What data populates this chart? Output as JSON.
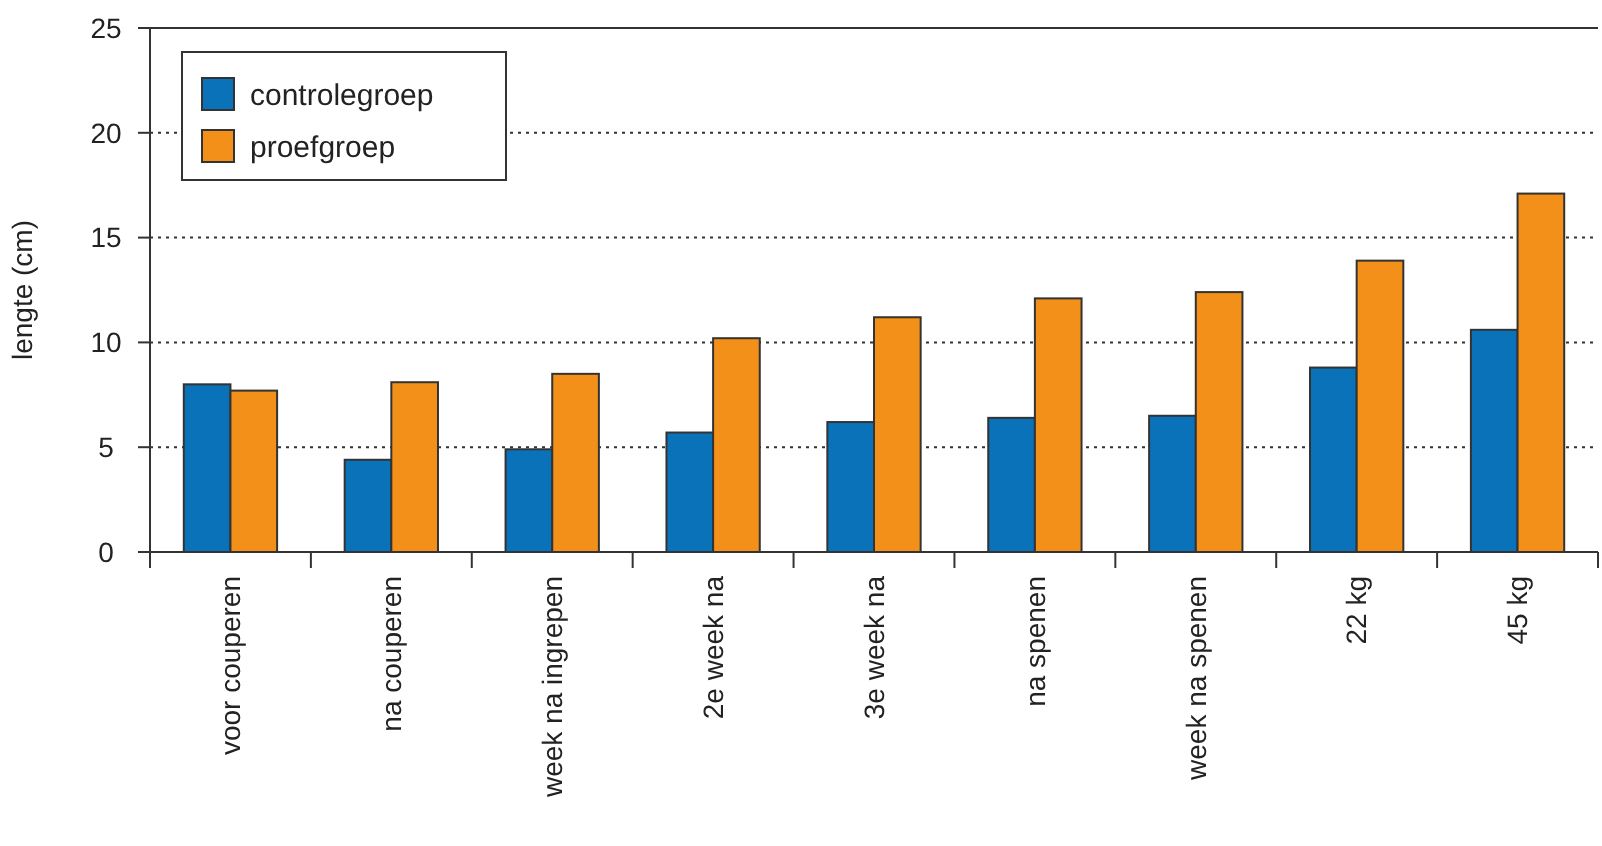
{
  "chart_data": {
    "type": "bar",
    "ylabel": "lengte (cm)",
    "categories": [
      "voor couperen",
      "na couperen",
      "week na ingrepen",
      "2e week na",
      "3e week na",
      "na spenen",
      "week na spenen",
      "22 kg",
      "45 kg"
    ],
    "series": [
      {
        "name": "controlegroep",
        "color": "#0a72b8",
        "values": [
          8.0,
          4.4,
          4.9,
          5.7,
          6.2,
          6.4,
          6.5,
          8.8,
          10.6
        ]
      },
      {
        "name": "proefgroep",
        "color": "#f39019",
        "values": [
          7.7,
          8.1,
          8.5,
          10.2,
          11.2,
          12.1,
          12.4,
          13.9,
          17.1
        ]
      }
    ],
    "ylim": [
      0,
      25
    ],
    "yticks": [
      0,
      5,
      10,
      15,
      20,
      25
    ],
    "grid": "y",
    "legend": "top left"
  }
}
